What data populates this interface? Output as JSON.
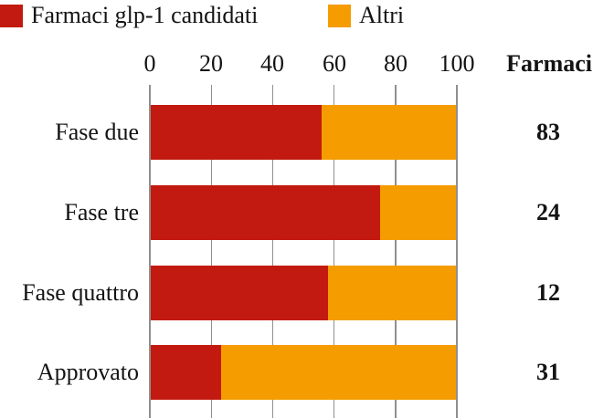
{
  "legend": [
    {
      "label": "Farmaci glp-1 candidati",
      "color": "#c21a10"
    },
    {
      "label": "Altri",
      "color": "#f49c00"
    }
  ],
  "chart_data": {
    "type": "bar",
    "orientation": "horizontal",
    "stacked": true,
    "title": "",
    "categories": [
      "Fase due",
      "Fase tre",
      "Fase quattro",
      "Approvato"
    ],
    "series": [
      {
        "name": "Farmaci glp-1 candidati",
        "color": "#c21a10",
        "values": [
          56,
          75,
          58,
          23
        ]
      },
      {
        "name": "Altri",
        "color": "#f49c00",
        "values": [
          44,
          25,
          42,
          77
        ]
      }
    ],
    "x_ticks": [
      "0",
      "20",
      "40",
      "60",
      "80",
      "100"
    ],
    "xlim": [
      0,
      100
    ],
    "unit": "percent",
    "grid": true,
    "legend_position": "top",
    "value_column": {
      "header": "Farmaci",
      "values": [
        "83",
        "24",
        "12",
        "31"
      ]
    }
  }
}
